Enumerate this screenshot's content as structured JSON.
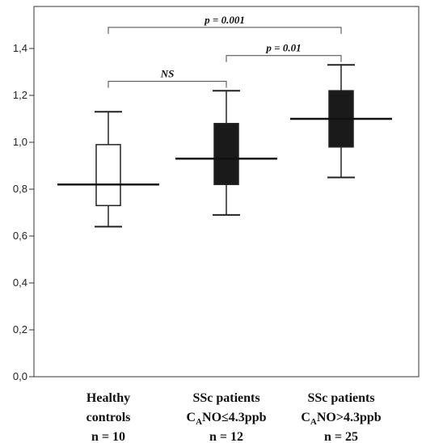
{
  "chart_data": {
    "type": "boxplot",
    "title": "",
    "xlabel": "",
    "ylabel": "",
    "ylim": [
      0,
      1.55
    ],
    "yticks": [
      0,
      0.2,
      0.4,
      0.6,
      0.8,
      1.0,
      1.2,
      1.4
    ],
    "ytick_labels": [
      "0,0",
      "0,2",
      "0,4",
      "0,6",
      "0,8",
      "1,0",
      "1,2",
      "1,4"
    ],
    "grid": false,
    "legend": "none",
    "categories": [
      {
        "lines": [
          "Healthy",
          "controls",
          "n = 10"
        ],
        "sub": []
      },
      {
        "lines": [
          "SSc patients",
          "C_NO≤4.3ppb",
          "n = 12"
        ],
        "sub": [
          "",
          "A",
          ""
        ]
      },
      {
        "lines": [
          "SSc patients",
          "C_NO>4.3ppb",
          "n = 25"
        ],
        "sub": [
          "",
          "A",
          ""
        ]
      }
    ],
    "boxes": [
      {
        "min": 0.64,
        "q1": 0.73,
        "median": 0.82,
        "q3": 0.99,
        "max": 1.13,
        "fill": "#ffffff"
      },
      {
        "min": 0.69,
        "q1": 0.82,
        "median": 0.93,
        "q3": 1.08,
        "max": 1.22,
        "fill": "#1a1a1a"
      },
      {
        "min": 0.85,
        "q1": 0.98,
        "median": 1.1,
        "q3": 1.22,
        "max": 1.33,
        "fill": "#1a1a1a"
      }
    ],
    "significance": [
      {
        "from": 0,
        "to": 1,
        "y": 1.26,
        "label": "NS"
      },
      {
        "from": 1,
        "to": 2,
        "y": 1.37,
        "label": "p = 0.01"
      },
      {
        "from": 0,
        "to": 2,
        "y": 1.49,
        "label": "p = 0.001"
      }
    ]
  }
}
